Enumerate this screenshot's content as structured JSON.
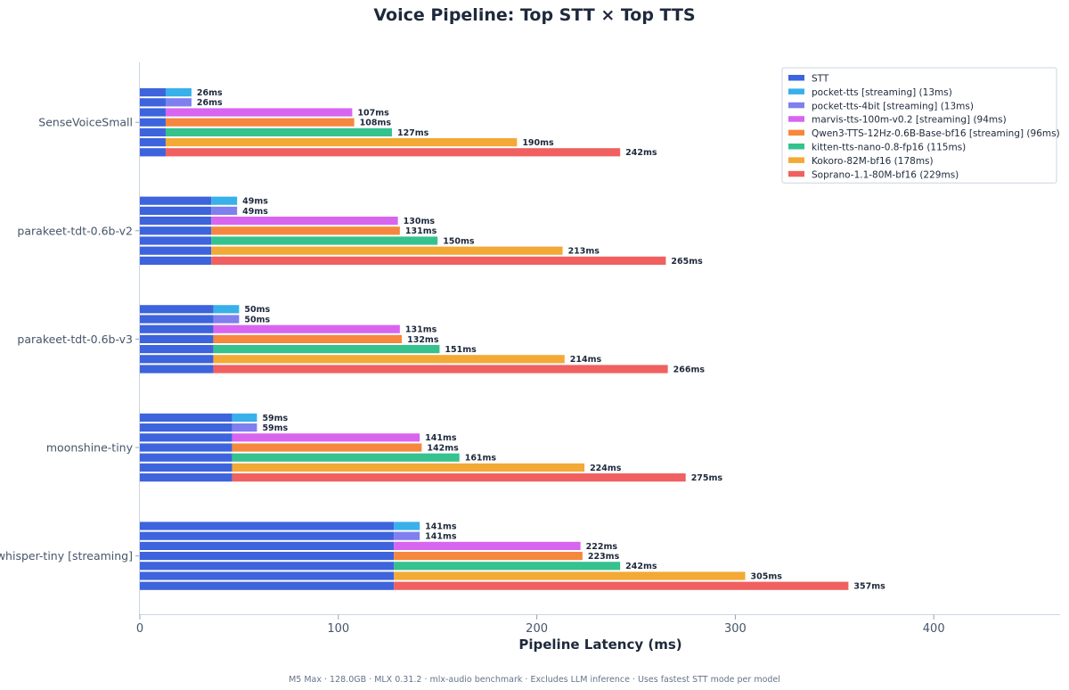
{
  "chart_data": {
    "type": "bar",
    "orientation": "horizontal-stacked-grouped",
    "title": "Voice Pipeline: Top STT × Top TTS",
    "xlabel": "Pipeline Latency (ms)",
    "xlim": [
      0,
      465
    ],
    "xticks": [
      0,
      100,
      200,
      300,
      400
    ],
    "grid": false,
    "legend_position": "top-right",
    "footer": "M5 Max · 128.0GB · MLX 0.31.2 · mlx-audio benchmark · Excludes LLM inference · Uses fastest STT mode per model",
    "stt_label": "STT",
    "stt_color": "#3d63dd",
    "tts_models": [
      {
        "name": "pocket-tts [streaming] (13ms)",
        "color": "#38b0ea"
      },
      {
        "name": "pocket-tts-4bit [streaming] (13ms)",
        "color": "#7f7fef"
      },
      {
        "name": "marvis-tts-100m-v0.2 [streaming] (94ms)",
        "color": "#d865f0"
      },
      {
        "name": "Qwen3-TTS-12Hz-0.6B-Base-bf16 [streaming] (96ms)",
        "color": "#f5883e"
      },
      {
        "name": "kitten-tts-nano-0.8-fp16 (115ms)",
        "color": "#35c28e"
      },
      {
        "name": "Kokoro-82M-bf16 (178ms)",
        "color": "#f3a935"
      },
      {
        "name": "Soprano-1.1-80M-bf16 (229ms)",
        "color": "#f06060"
      }
    ],
    "groups": [
      {
        "name": "SenseVoiceSmall",
        "stt": 13,
        "totals": [
          26,
          26,
          107,
          108,
          127,
          190,
          242
        ],
        "labels": [
          "26ms",
          "26ms",
          "107ms",
          "108ms",
          "127ms",
          "190ms",
          "242ms"
        ]
      },
      {
        "name": "parakeet-tdt-0.6b-v2",
        "stt": 36,
        "totals": [
          49,
          49,
          130,
          131,
          150,
          213,
          265
        ],
        "labels": [
          "49ms",
          "49ms",
          "130ms",
          "131ms",
          "150ms",
          "213ms",
          "265ms"
        ]
      },
      {
        "name": "parakeet-tdt-0.6b-v3",
        "stt": 37,
        "totals": [
          50,
          50,
          131,
          132,
          151,
          214,
          266
        ],
        "labels": [
          "50ms",
          "50ms",
          "131ms",
          "132ms",
          "151ms",
          "214ms",
          "266ms"
        ]
      },
      {
        "name": "moonshine-tiny",
        "stt": 46.5,
        "totals": [
          59,
          59,
          141,
          142,
          161,
          224,
          275
        ],
        "labels": [
          "59ms",
          "59ms",
          "141ms",
          "142ms",
          "161ms",
          "224ms",
          "275ms"
        ]
      },
      {
        "name": "whisper-tiny [streaming]",
        "stt": 128,
        "totals": [
          141,
          141,
          222,
          223,
          242,
          305,
          357
        ],
        "labels": [
          "141ms",
          "141ms",
          "222ms",
          "223ms",
          "242ms",
          "305ms",
          "357ms"
        ]
      }
    ]
  }
}
